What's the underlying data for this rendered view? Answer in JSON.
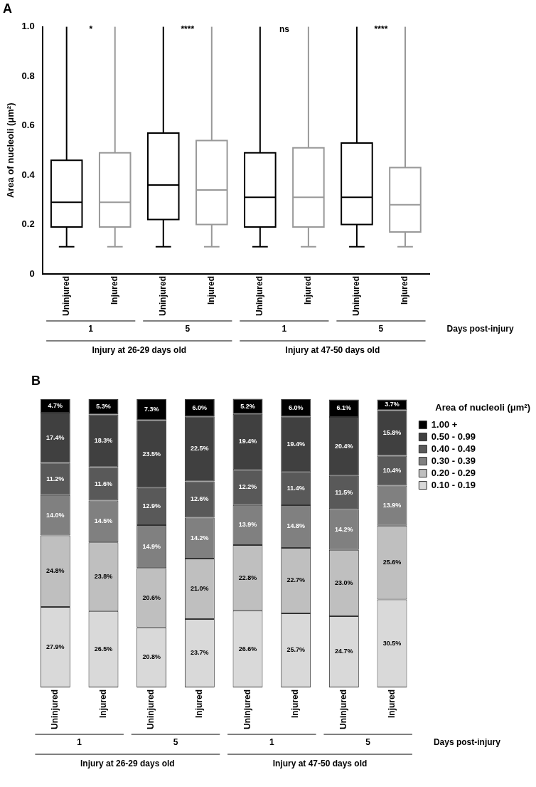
{
  "chart_data": [
    {
      "type": "box",
      "title": "A",
      "ylabel": "Area of nucleoli (μm²)",
      "categories": [
        "Uninjured",
        "Injured",
        "Uninjured",
        "Injured",
        "Uninjured",
        "Injured",
        "Uninjured",
        "Injured"
      ],
      "colors": [
        "#000000",
        "#999999",
        "#000000",
        "#999999",
        "#000000",
        "#999999",
        "#000000",
        "#999999"
      ],
      "boxes": [
        {
          "low": 0.11,
          "q1": 0.19,
          "median": 0.29,
          "q3": 0.46,
          "high": 1.0
        },
        {
          "low": 0.11,
          "q1": 0.19,
          "median": 0.29,
          "q3": 0.49,
          "high": 1.0
        },
        {
          "low": 0.11,
          "q1": 0.22,
          "median": 0.36,
          "q3": 0.57,
          "high": 1.0
        },
        {
          "low": 0.11,
          "q1": 0.2,
          "median": 0.34,
          "q3": 0.54,
          "high": 1.0
        },
        {
          "low": 0.11,
          "q1": 0.19,
          "median": 0.31,
          "q3": 0.49,
          "high": 1.0
        },
        {
          "low": 0.11,
          "q1": 0.19,
          "median": 0.31,
          "q3": 0.51,
          "high": 1.0
        },
        {
          "low": 0.11,
          "q1": 0.2,
          "median": 0.31,
          "q3": 0.53,
          "high": 1.0
        },
        {
          "low": 0.11,
          "q1": 0.17,
          "median": 0.28,
          "q3": 0.43,
          "high": 1.0
        }
      ],
      "ylim": [
        0,
        1.0
      ],
      "yticks": [
        0,
        0.2,
        0.4,
        0.6,
        0.8,
        {
          "value": 1.0,
          "label": "1.0"
        }
      ],
      "grid": false,
      "legend": false,
      "annotations": [
        "1",
        "5",
        "1",
        "5",
        "Days post-injury",
        "Injury at 26-29 days old",
        "Injury at 47-50 days old",
        "*",
        "****",
        "ns",
        "****"
      ]
    },
    {
      "type": "bar",
      "stacked": true,
      "title": "B",
      "legend_title": "Area of nucleoli (μm²)",
      "categories": [
        "Uninjured",
        "Injured",
        "Uninjured",
        "Injured",
        "Uninjured",
        "Injured",
        "Uninjured",
        "Injured"
      ],
      "series": [
        {
          "name": "0.10 - 0.19",
          "color": "#d9d9d9",
          "values": [
            27.9,
            26.5,
            20.8,
            23.7,
            26.6,
            25.7,
            24.7,
            30.5
          ],
          "value_labels": [
            "27.9%",
            "26.5%",
            "20.8%",
            "23.7%",
            "26.6%",
            "25.7%",
            "24.7%",
            "30.5%"
          ]
        },
        {
          "name": "0.20 - 0.29",
          "color": "#bfbfbf",
          "values": [
            24.8,
            23.8,
            20.6,
            21.0,
            22.8,
            22.7,
            23.0,
            25.6
          ],
          "value_labels": [
            "24.8%",
            "23.8%",
            "20.6%",
            "21.0%",
            "22.8%",
            "22.7%",
            "23.0%",
            "25.6%"
          ]
        },
        {
          "name": "0.30 - 0.39",
          "color": "#808080",
          "values": [
            14.0,
            14.5,
            14.9,
            14.2,
            13.9,
            14.8,
            14.2,
            13.9
          ],
          "value_labels": [
            "14.0%",
            "14.5%",
            "14.9%",
            "14.2%",
            "13.9%",
            "14.8%",
            "14.2%",
            "13.9%"
          ]
        },
        {
          "name": "0.40 - 0.49",
          "color": "#595959",
          "values": [
            11.2,
            11.6,
            12.9,
            12.6,
            12.2,
            11.4,
            11.5,
            10.4
          ],
          "value_labels": [
            "11.2%",
            "11.6%",
            "12.9%",
            "12.6%",
            "12.2%",
            "11.4%",
            "11.5%",
            "10.4%"
          ]
        },
        {
          "name": "0.50 - 0.99",
          "color": "#404040",
          "values": [
            17.4,
            18.3,
            23.5,
            22.5,
            19.4,
            19.4,
            20.4,
            15.8
          ],
          "value_labels": [
            "17.4%",
            "18.3%",
            "23.5%",
            "22.5%",
            "19.4%",
            "19.4%",
            "20.4%",
            "15.8%"
          ]
        },
        {
          "name": "1.00 +",
          "color": "#000000",
          "values": [
            4.7,
            5.3,
            7.3,
            6.0,
            5.2,
            6.0,
            6.1,
            3.7
          ],
          "value_labels": [
            "4.7%",
            "5.3%",
            "7.3%",
            "6.0%",
            "5.2%",
            "6.0%",
            "6.1%",
            "3.7%"
          ]
        }
      ],
      "tick_labels": "x",
      "grid": false,
      "legend": "top right",
      "annotations": [
        "1",
        "5",
        "1",
        "5",
        "Days post-injury",
        "Injury at 26-29 days old",
        "Injury at 47-50 days old"
      ]
    }
  ]
}
